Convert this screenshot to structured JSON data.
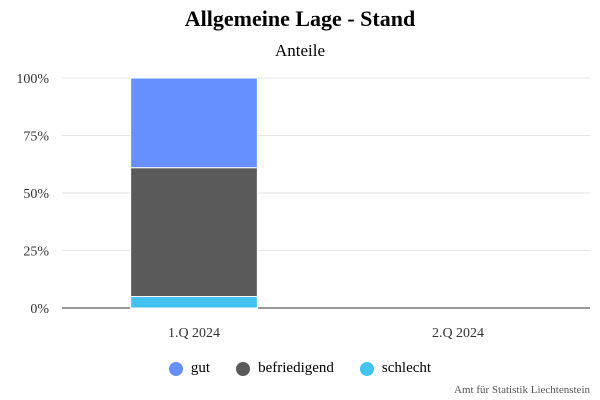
{
  "chart_data": {
    "type": "bar",
    "stacked": true,
    "title": "Allgemeine Lage - Stand",
    "subtitle": "Anteile",
    "categories": [
      "1.Q 2024",
      "2.Q 2024"
    ],
    "series": [
      {
        "name": "gut",
        "color": "#6690ff",
        "values": [
          39,
          null
        ]
      },
      {
        "name": "befriedigend",
        "color": "#5a5a5a",
        "values": [
          56,
          null
        ]
      },
      {
        "name": "schlecht",
        "color": "#41c2ef",
        "values": [
          5,
          null
        ]
      }
    ],
    "ylim": [
      0,
      100
    ],
    "yticks": [
      "0%",
      "25%",
      "50%",
      "75%",
      "100%"
    ],
    "grid": true,
    "legend_position": "bottom",
    "credit": "Amt für Statistik Liechtenstein"
  }
}
